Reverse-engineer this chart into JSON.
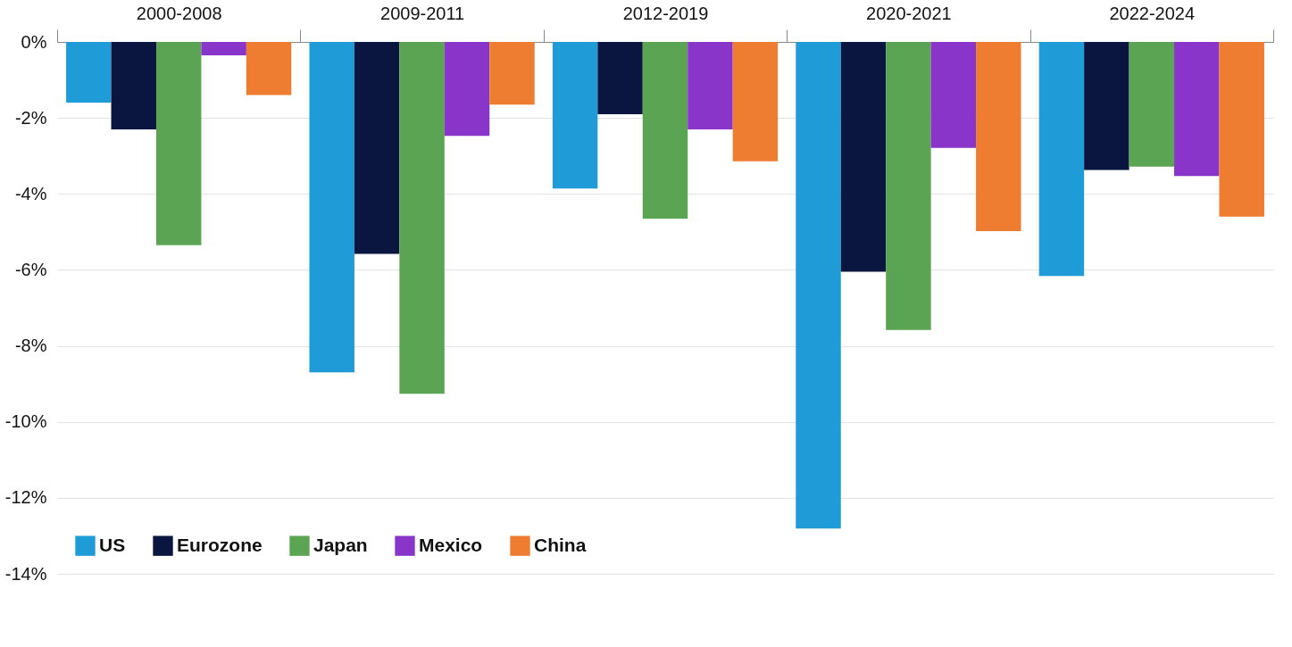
{
  "chart_data": {
    "type": "bar",
    "categories": [
      "2000-2008",
      "2009-2011",
      "2012-2019",
      "2020-2021",
      "2022-2024"
    ],
    "series": [
      {
        "name": "US",
        "color": "#1f9bd7",
        "values": [
          -1.6,
          -8.7,
          -3.86,
          -12.81,
          -6.16
        ]
      },
      {
        "name": "Eurozone",
        "color": "#0b1640",
        "values": [
          -2.3,
          -5.58,
          -1.9,
          -6.05,
          -3.37
        ]
      },
      {
        "name": "Japan",
        "color": "#5ba453",
        "values": [
          -5.35,
          -9.26,
          -4.65,
          -7.58,
          -3.28
        ]
      },
      {
        "name": "Mexico",
        "color": "#8a35c9",
        "values": [
          -0.35,
          -2.47,
          -2.3,
          -2.79,
          -3.53
        ]
      },
      {
        "name": "China",
        "color": "#ef7d31",
        "values": [
          -1.4,
          -1.65,
          -3.14,
          -4.98,
          -4.6
        ]
      }
    ],
    "ylim": [
      -14,
      0
    ],
    "yticks": [
      {
        "value": 0,
        "label": "0%"
      },
      {
        "value": -2,
        "label": "-2%"
      },
      {
        "value": -4,
        "label": "-4%"
      },
      {
        "value": -6,
        "label": "-6%"
      },
      {
        "value": -8,
        "label": "-8%"
      },
      {
        "value": -10,
        "label": "-10%"
      },
      {
        "value": -12,
        "label": "-12%"
      },
      {
        "value": -14,
        "label": "-14%"
      }
    ],
    "grid": "y",
    "legend": "bottom left"
  }
}
